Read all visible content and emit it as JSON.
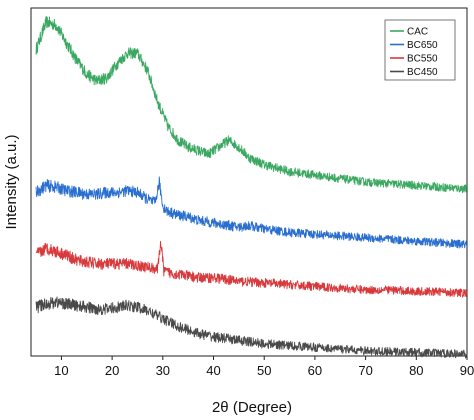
{
  "chart_data": {
    "type": "line",
    "title": "",
    "xlabel": "2θ (Degree)",
    "ylabel": "Intensity (a.u.)",
    "xlim": [
      4,
      90
    ],
    "xticks": [
      10,
      20,
      30,
      40,
      50,
      60,
      70,
      80,
      90
    ],
    "y_ticks_shown": false,
    "grid": false,
    "legend_position": "top-right",
    "series": [
      {
        "name": "CAC",
        "color": "#3aa860",
        "x": [
          5,
          7,
          9,
          11,
          13,
          15,
          17,
          19,
          21,
          23,
          25,
          27,
          29,
          31,
          33,
          35,
          37,
          39,
          41,
          43,
          45,
          47,
          50,
          55,
          60,
          65,
          70,
          75,
          80,
          85,
          90
        ],
        "y": [
          0.88,
          0.96,
          0.95,
          0.9,
          0.85,
          0.81,
          0.79,
          0.8,
          0.84,
          0.87,
          0.87,
          0.82,
          0.73,
          0.66,
          0.62,
          0.6,
          0.59,
          0.58,
          0.6,
          0.62,
          0.6,
          0.57,
          0.55,
          0.53,
          0.52,
          0.51,
          0.5,
          0.495,
          0.49,
          0.485,
          0.48
        ]
      },
      {
        "name": "BC650",
        "color": "#2a6fd0",
        "x": [
          5,
          7,
          9,
          11,
          13,
          15,
          17,
          19,
          21,
          23,
          25,
          27,
          28.5,
          29.3,
          30,
          31,
          33,
          35,
          37,
          39,
          41,
          45,
          47,
          50,
          55,
          60,
          65,
          70,
          75,
          80,
          85,
          90
        ],
        "y": [
          0.47,
          0.49,
          0.485,
          0.475,
          0.47,
          0.465,
          0.465,
          0.47,
          0.47,
          0.475,
          0.47,
          0.45,
          0.44,
          0.5,
          0.43,
          0.415,
          0.405,
          0.4,
          0.39,
          0.385,
          0.38,
          0.37,
          0.375,
          0.365,
          0.355,
          0.35,
          0.345,
          0.34,
          0.335,
          0.33,
          0.325,
          0.32
        ]
      },
      {
        "name": "BC550",
        "color": "#d8393c",
        "x": [
          5,
          7,
          9,
          11,
          13,
          15,
          17,
          19,
          21,
          23,
          25,
          27,
          29,
          29.6,
          30.2,
          31,
          33,
          35,
          37,
          40,
          45,
          50,
          55,
          60,
          65,
          70,
          75,
          80,
          85,
          90
        ],
        "y": [
          0.29,
          0.31,
          0.3,
          0.29,
          0.275,
          0.27,
          0.265,
          0.265,
          0.265,
          0.265,
          0.26,
          0.255,
          0.25,
          0.33,
          0.245,
          0.24,
          0.235,
          0.23,
          0.225,
          0.225,
          0.215,
          0.21,
          0.205,
          0.2,
          0.195,
          0.19,
          0.19,
          0.185,
          0.185,
          0.18
        ]
      },
      {
        "name": "BC450",
        "color": "#4a4a4a",
        "x": [
          5,
          7,
          9,
          11,
          13,
          15,
          17,
          19,
          21,
          23,
          25,
          27,
          29,
          31,
          33,
          35,
          37,
          40,
          45,
          50,
          55,
          60,
          65,
          70,
          75,
          80,
          85,
          90
        ],
        "y": [
          0.14,
          0.15,
          0.155,
          0.15,
          0.145,
          0.14,
          0.135,
          0.135,
          0.14,
          0.145,
          0.14,
          0.13,
          0.115,
          0.1,
          0.085,
          0.075,
          0.065,
          0.055,
          0.045,
          0.035,
          0.03,
          0.025,
          0.02,
          0.015,
          0.012,
          0.01,
          0.008,
          0.005
        ]
      }
    ]
  }
}
